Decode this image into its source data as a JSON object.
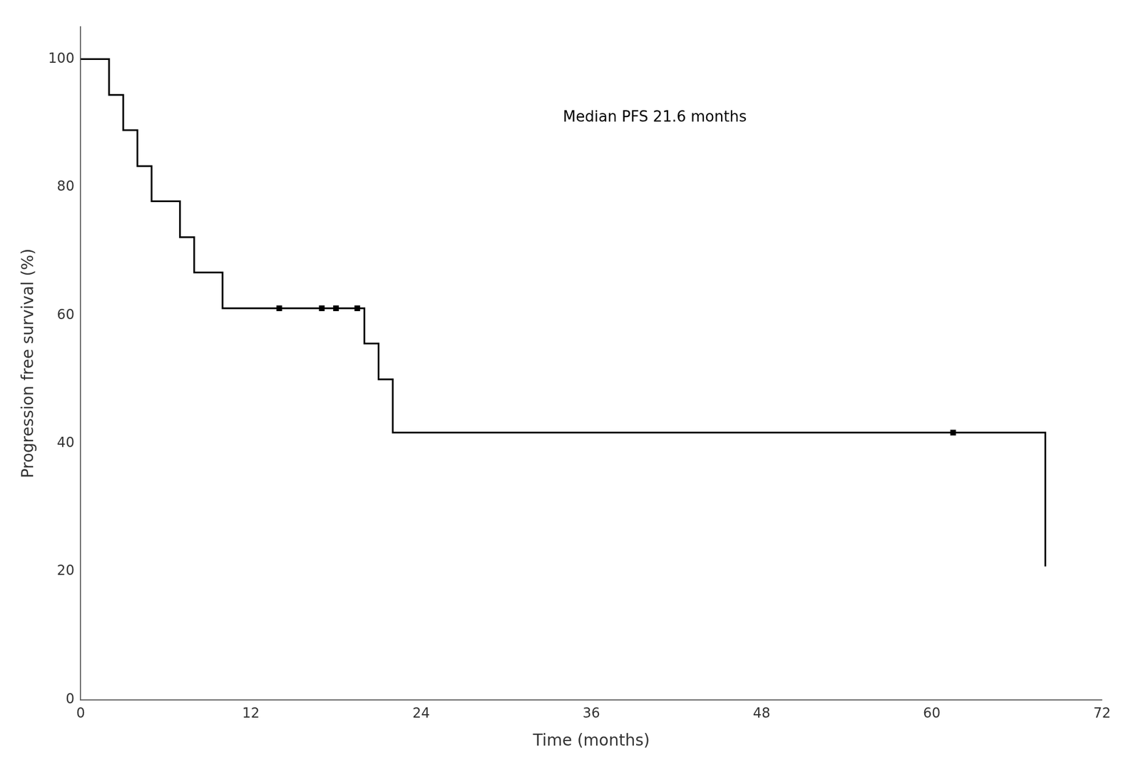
{
  "chart_data": {
    "type": "step",
    "xlabel": "Time (months)",
    "ylabel": "Progression free survival (%)",
    "annotations": [
      {
        "text": "Median PFS 21.6 months",
        "x": 34,
        "y": 92
      }
    ],
    "xlim": [
      0,
      72
    ],
    "ylim": [
      0,
      105
    ],
    "xticks": [
      0,
      12,
      24,
      36,
      48,
      60,
      72
    ],
    "yticks": [
      0,
      20,
      40,
      60,
      80,
      100
    ],
    "grid": false,
    "series": [
      {
        "type": "step",
        "color": "#000000",
        "x": [
          0,
          2,
          3,
          4,
          5,
          7,
          8,
          10,
          11,
          20,
          21,
          22,
          60,
          68
        ],
        "values": [
          100,
          94.4,
          88.9,
          83.3,
          77.8,
          72.2,
          66.7,
          61.1,
          61.1,
          55.6,
          50.0,
          41.7,
          41.7,
          20.8
        ]
      },
      {
        "type": "scatter",
        "marker": "square",
        "color": "#000000",
        "x": [
          14,
          17,
          18,
          19.5
        ],
        "values": [
          61.1,
          61.1,
          61.1,
          61.1
        ]
      },
      {
        "type": "scatter",
        "marker": "square",
        "color": "#000000",
        "x": [
          61.5
        ],
        "values": [
          41.7
        ]
      }
    ]
  }
}
